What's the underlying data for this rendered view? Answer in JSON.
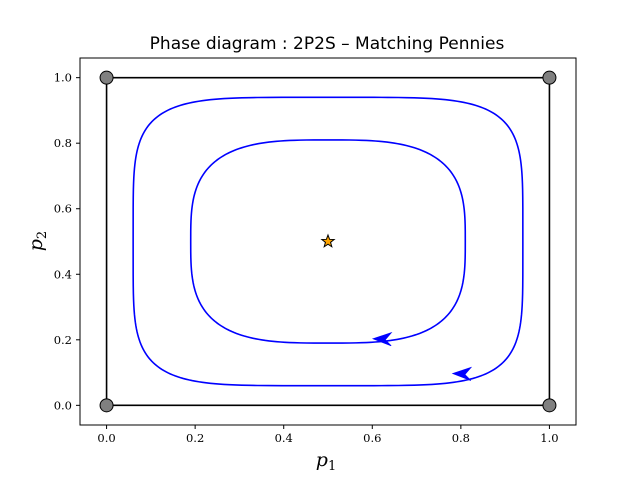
{
  "chart_data": {
    "type": "line",
    "title": "Phase diagram : 2P2S – Matching Pennies",
    "xlabel": {
      "main": "p",
      "sub": "1"
    },
    "ylabel": {
      "main": "p",
      "sub": "2"
    },
    "xlim": [
      -0.06,
      1.06
    ],
    "ylim": [
      -0.06,
      1.06
    ],
    "xticks": [
      0.0,
      0.2,
      0.4,
      0.6,
      0.8,
      1.0
    ],
    "yticks": [
      0.0,
      0.2,
      0.4,
      0.6,
      0.8,
      1.0
    ],
    "xtick_labels": [
      "0.0",
      "0.2",
      "0.4",
      "0.6",
      "0.8",
      "1.0"
    ],
    "ytick_labels": [
      "0.0",
      "0.2",
      "0.4",
      "0.6",
      "0.8",
      "1.0"
    ],
    "grid": false,
    "simplex_square": {
      "color": "#000000",
      "corners": [
        [
          0,
          0
        ],
        [
          1,
          0
        ],
        [
          1,
          1
        ],
        [
          0,
          1
        ]
      ]
    },
    "vertices": {
      "color": "#808080",
      "points": [
        [
          0,
          0
        ],
        [
          1,
          0
        ],
        [
          0,
          1
        ],
        [
          1,
          1
        ]
      ]
    },
    "equilibrium": {
      "x": 0.5,
      "y": 0.5,
      "color": "#ffa500",
      "marker": "star"
    },
    "trajectories": [
      {
        "color": "#0000ff",
        "center": [
          0.5,
          0.5
        ],
        "rx": 0.31,
        "ry": 0.31,
        "exponent": 3.2,
        "arrow_at": [
          0.62,
          0.2
        ],
        "direction": "left"
      },
      {
        "color": "#0000ff",
        "center": [
          0.5,
          0.5
        ],
        "rx": 0.44,
        "ry": 0.44,
        "exponent": 5.0,
        "arrow_at": [
          0.8,
          0.094
        ],
        "direction": "left"
      }
    ]
  }
}
